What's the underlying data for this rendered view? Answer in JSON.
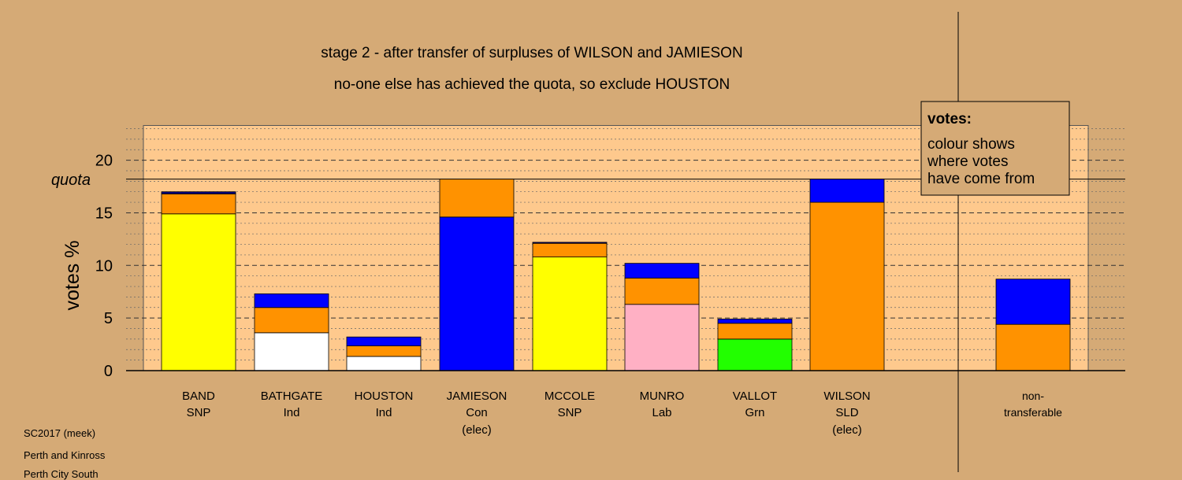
{
  "title_line1": "stage 2 - after transfer of surpluses of WILSON and JAMIESON",
  "title_line2": "no-one else has achieved the quota, so exclude HOUSTON",
  "legend": {
    "title": "votes:",
    "lines": [
      "colour shows",
      "where votes",
      "have come from"
    ]
  },
  "footer": {
    "line1": "SC2017 (meek)",
    "line2": "Perth and Kinross",
    "line3": "Perth City South"
  },
  "colors": {
    "background": "#d5aa76",
    "plot_area": "#fec98d",
    "SNP": "#ffff00",
    "Ind": "#ffffff",
    "Con": "#0000ff",
    "Lab": "#ffb0c4",
    "Grn": "#22ff00",
    "SLD": "#ff9200",
    "Con_thin": "#000080"
  },
  "chart_data": {
    "type": "bar",
    "stacked": true,
    "title": "stage 2 - after transfer of surpluses of WILSON and JAMIESON",
    "subtitle": "no-one else has achieved the quota, so exclude HOUSTON",
    "ylabel": "votes %",
    "ylim": [
      0,
      23.3
    ],
    "yticks": [
      0,
      5,
      10,
      15,
      20
    ],
    "quota": 18.2,
    "quota_label": "quota",
    "grid": "dashed horizontal at each whole percent",
    "legend_position": "top-right",
    "categories": [
      {
        "name": "BAND",
        "party": "SNP",
        "note": ""
      },
      {
        "name": "BATHGATE",
        "party": "Ind",
        "note": ""
      },
      {
        "name": "HOUSTON",
        "party": "Ind",
        "note": ""
      },
      {
        "name": "JAMIESON",
        "party": "Con",
        "note": "(elec)"
      },
      {
        "name": "MCCOLE",
        "party": "SNP",
        "note": ""
      },
      {
        "name": "MUNRO",
        "party": "Lab",
        "note": ""
      },
      {
        "name": "VALLOT",
        "party": "Grn",
        "note": ""
      },
      {
        "name": "WILSON",
        "party": "SLD",
        "note": "(elec)"
      },
      {
        "name": "non-",
        "party": "transferable",
        "note": ""
      }
    ],
    "stacks": [
      [
        {
          "from": "SNP",
          "value": 14.9
        },
        {
          "from": "SLD",
          "value": 1.9
        },
        {
          "from": "Con_thin",
          "value": 0.2
        }
      ],
      [
        {
          "from": "Ind",
          "value": 3.6
        },
        {
          "from": "SLD",
          "value": 2.4
        },
        {
          "from": "Con",
          "value": 1.3
        }
      ],
      [
        {
          "from": "Ind",
          "value": 1.35
        },
        {
          "from": "SLD",
          "value": 1.0
        },
        {
          "from": "Con",
          "value": 0.85
        }
      ],
      [
        {
          "from": "Con",
          "value": 14.6
        },
        {
          "from": "SLD",
          "value": 3.6
        }
      ],
      [
        {
          "from": "SNP",
          "value": 10.8
        },
        {
          "from": "SLD",
          "value": 1.3
        },
        {
          "from": "Con_thin",
          "value": 0.1
        }
      ],
      [
        {
          "from": "Lab",
          "value": 6.3
        },
        {
          "from": "SLD",
          "value": 2.5
        },
        {
          "from": "Con",
          "value": 1.4
        }
      ],
      [
        {
          "from": "Grn",
          "value": 3.0
        },
        {
          "from": "SLD",
          "value": 1.5
        },
        {
          "from": "Con",
          "value": 0.4
        }
      ],
      [
        {
          "from": "SLD",
          "value": 16.0
        },
        {
          "from": "Con",
          "value": 2.2
        }
      ],
      [
        {
          "from": "SLD",
          "value": 4.4
        },
        {
          "from": "Con",
          "value": 4.3
        }
      ]
    ]
  }
}
